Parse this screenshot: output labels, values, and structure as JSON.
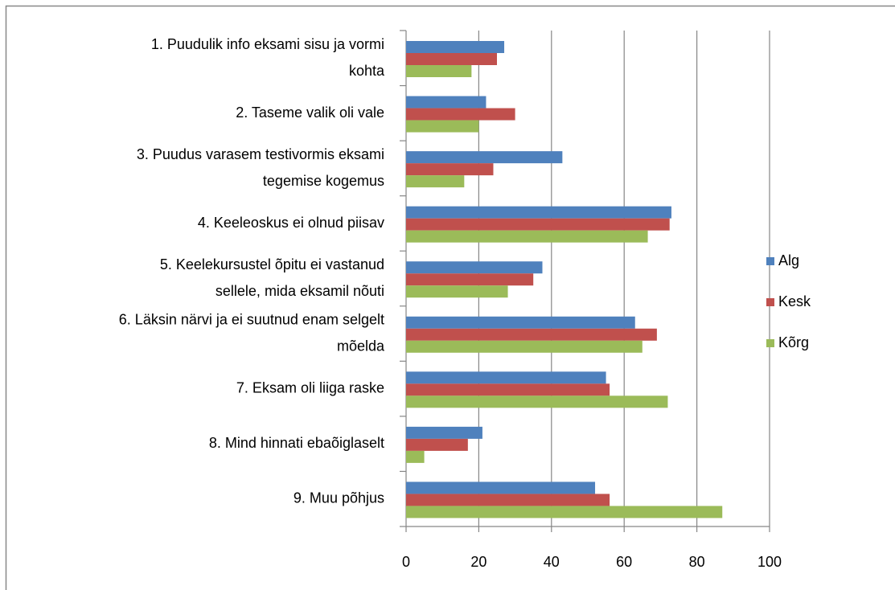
{
  "chart_data": {
    "type": "barh",
    "categories": [
      "1. Puudulik info eksami sisu ja vormi\nkohta",
      "2. Taseme valik oli vale",
      "3. Puudus varasem testivormis eksami\ntegemise kogemus",
      "4. Keeleoskus ei olnud piisav",
      "5. Keelekursustel õpitu ei vastanud\nsellele, mida eksamil nõuti",
      "6. Läksin närvi ja ei suutnud enam selgelt\nmõelda",
      "7. Eksam oli liiga raske",
      "8. Mind hinnati ebaõiglaselt",
      "9. Muu põhjus"
    ],
    "series": [
      {
        "name": "Alg",
        "color": "#4f81bd",
        "values": [
          27,
          22,
          43,
          73,
          37.5,
          63,
          55,
          21,
          52
        ]
      },
      {
        "name": "Kesk",
        "color": "#c0504d",
        "values": [
          25,
          30,
          24,
          72.5,
          35,
          69,
          56,
          17,
          56
        ]
      },
      {
        "name": "Kõrg",
        "color": "#9bbb59",
        "values": [
          18,
          20,
          16,
          66.5,
          28,
          65,
          72,
          5,
          87
        ]
      }
    ],
    "xlim": [
      0,
      100
    ],
    "xticks": [
      0,
      20,
      40,
      60,
      80,
      100
    ],
    "grid": true,
    "legend": "right"
  }
}
